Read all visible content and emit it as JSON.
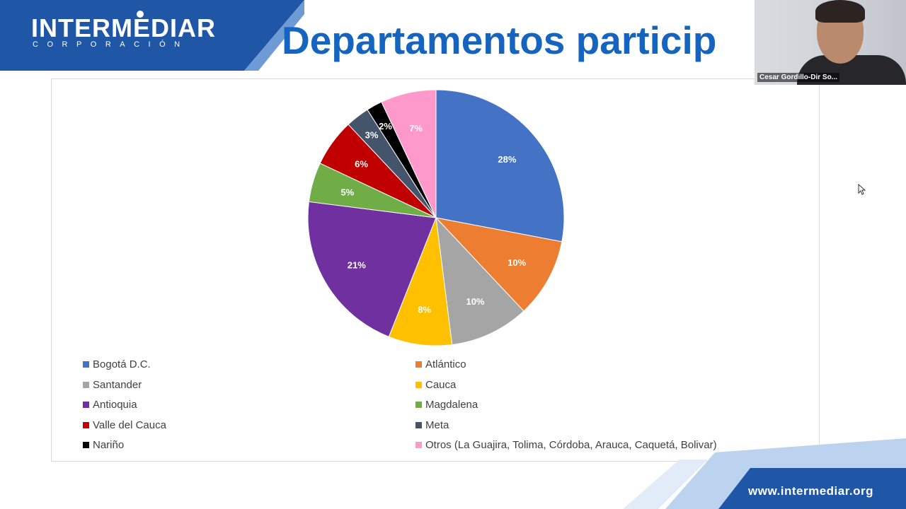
{
  "header": {
    "logo_main": "INTERMEDIAR",
    "logo_sub": "CORPORACIÓN",
    "title": "Departamentos particip"
  },
  "footer": {
    "url": "www.intermediar.org"
  },
  "webcam": {
    "name": "Cesar Gordillo-Dir So..."
  },
  "colors": {
    "brand_blue": "#1565c0",
    "logo_band": "#1f56a6",
    "footer_blue": "#1f56a6"
  },
  "chart_data": {
    "type": "pie",
    "title": "",
    "categories": [
      "Bogotá D.C.",
      "Atlántico",
      "Santander",
      "Cauca",
      "Antioquia",
      "Magdalena",
      "Valle del Cauca",
      "Meta",
      "Nariño",
      "Otros (La Guajira, Tolima, Córdoba, Arauca, Caquetá, Bolivar)"
    ],
    "values": [
      28,
      10,
      10,
      8,
      21,
      5,
      6,
      3,
      2,
      7
    ],
    "labels": [
      "28%",
      "10%",
      "10%",
      "8%",
      "21%",
      "5%",
      "6%",
      "3%",
      "2%",
      "7%"
    ],
    "colors": [
      "#4472c4",
      "#ed7d31",
      "#a5a5a5",
      "#ffc000",
      "#7030a0",
      "#70ad47",
      "#c00000",
      "#44546a",
      "#000000",
      "#ff99cc"
    ],
    "legend_position": "bottom",
    "start_angle_deg": 0,
    "direction": "clockwise"
  }
}
